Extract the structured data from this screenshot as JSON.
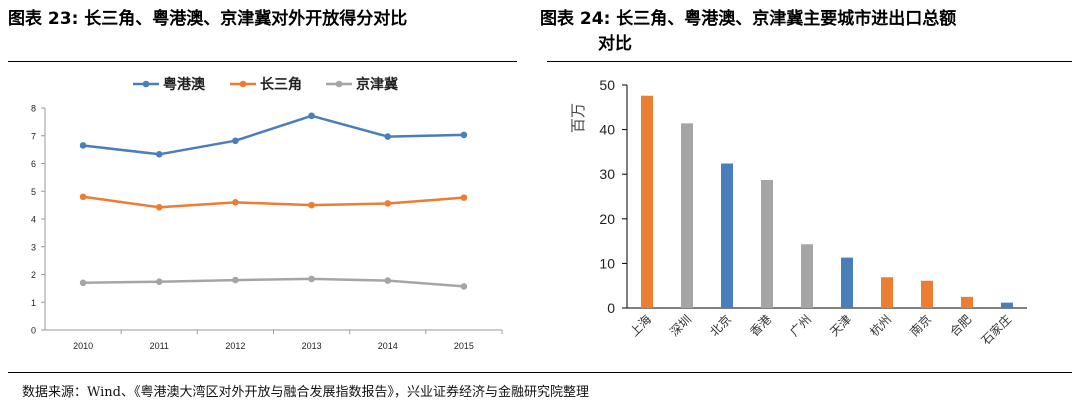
{
  "titles": {
    "left": "图表 23: 长三角、粤港澳、京津冀对外开放得分对比",
    "right_line1": "图表 24: 长三角、粤港澳、京津冀主要城市进出口总额",
    "right_line2": "对比"
  },
  "source": "数据来源：Wind、《粤港澳大湾区对外开放与融合发展指数报告》，兴业证券经济与金融研究院整理",
  "colors": {
    "blue": "#4a7ebb",
    "orange": "#ed7d31",
    "gray": "#a5a5a5"
  },
  "chart_data": [
    {
      "type": "line",
      "x": [
        "2010",
        "2011",
        "2012",
        "2013",
        "2014",
        "2015"
      ],
      "ylim": [
        0,
        8
      ],
      "yticks": [
        "0",
        "1",
        "2",
        "3",
        "4",
        "5",
        "6",
        "7",
        "8"
      ],
      "legend_position": "top",
      "grid": false,
      "series": [
        {
          "name": "粤港澳",
          "color": "#4a7ebb",
          "values": [
            6.65,
            6.33,
            6.82,
            7.72,
            6.97,
            7.03
          ]
        },
        {
          "name": "长三角",
          "color": "#ed7d31",
          "values": [
            4.8,
            4.42,
            4.6,
            4.5,
            4.56,
            4.77
          ]
        },
        {
          "name": "京津冀",
          "color": "#a5a5a5",
          "values": [
            1.7,
            1.74,
            1.8,
            1.84,
            1.78,
            1.57
          ]
        }
      ]
    },
    {
      "type": "bar",
      "ylabel": "百万",
      "ylim": [
        0,
        50
      ],
      "yticks": [
        "0",
        "10",
        "20",
        "30",
        "40",
        "50"
      ],
      "grid": false,
      "categories": [
        "上海",
        "深圳",
        "北京",
        "香港",
        "广州",
        "天津",
        "杭州",
        "南京",
        "合肥",
        "石家庄"
      ],
      "values": [
        47.6,
        41.4,
        32.4,
        28.7,
        14.3,
        11.3,
        6.9,
        6.1,
        2.5,
        1.2
      ],
      "bar_colors": [
        "#ed7d31",
        "#a5a5a5",
        "#4a7ebb",
        "#a5a5a5",
        "#a5a5a5",
        "#4a7ebb",
        "#ed7d31",
        "#ed7d31",
        "#ed7d31",
        "#4a7ebb"
      ]
    }
  ]
}
